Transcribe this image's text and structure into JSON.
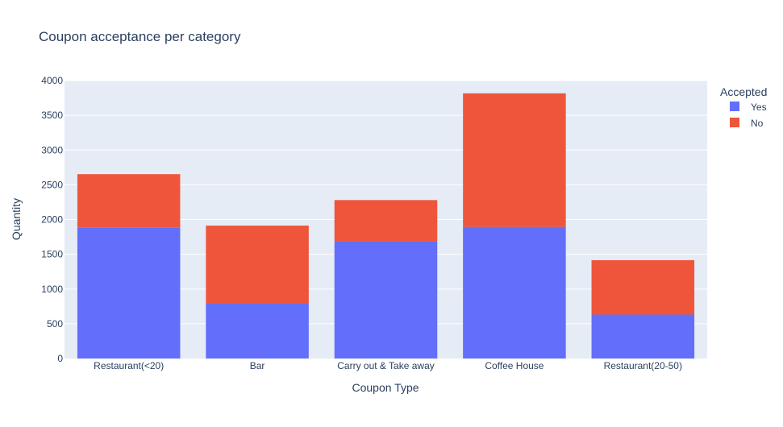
{
  "chart_data": {
    "type": "bar",
    "stacked": true,
    "title": "Coupon acceptance per category",
    "xlabel": "Coupon Type",
    "ylabel": "Quantity",
    "ylim": [
      0,
      4000
    ],
    "yticks": [
      0,
      500,
      1000,
      1500,
      2000,
      2500,
      3000,
      3500,
      4000
    ],
    "categories": [
      "Restaurant(<20)",
      "Bar",
      "Carry out & Take away",
      "Coffee House",
      "Restaurant(20-50)"
    ],
    "series": [
      {
        "name": "Yes",
        "color": "#636efa",
        "values": [
          1881,
          788,
          1682,
          1894,
          632
        ]
      },
      {
        "name": "No",
        "color": "#ef553b",
        "values": [
          772,
          1125,
          598,
          1922,
          783
        ]
      }
    ],
    "legend": {
      "title": "Accepted",
      "placement": "top-right"
    },
    "grid": true,
    "plot_background": "#e5ecf6"
  }
}
